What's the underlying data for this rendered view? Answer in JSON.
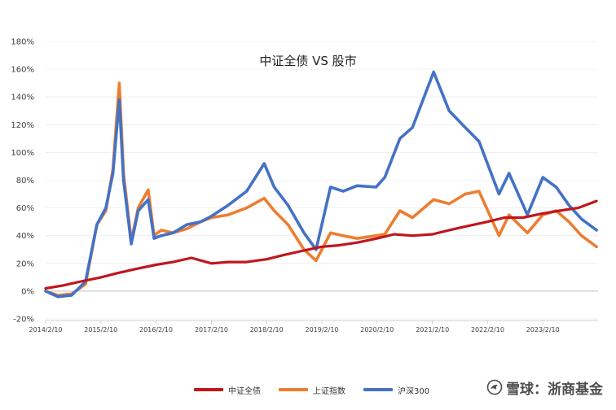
{
  "chart_data": {
    "type": "line",
    "title": "中证全债 VS 股市",
    "xlabel": "",
    "ylabel": "",
    "ylim": [
      -20,
      180
    ],
    "y_ticks": [
      "-20%",
      "0%",
      "20%",
      "40%",
      "60%",
      "80%",
      "100%",
      "120%",
      "140%",
      "160%",
      "180%"
    ],
    "y_tick_values": [
      -20,
      0,
      20,
      40,
      60,
      80,
      100,
      120,
      140,
      160,
      180
    ],
    "x_ticks": [
      "2014/2/10",
      "2015/2/10",
      "2016/2/10",
      "2017/2/10",
      "2018/2/10",
      "2019/2/10",
      "2020/2/10",
      "2021/2/10",
      "2022/2/10",
      "2023/2/10"
    ],
    "x_tick_values": [
      "2014-02-10",
      "2015-02-10",
      "2016-02-10",
      "2017-02-10",
      "2018-02-10",
      "2019-02-10",
      "2020-02-10",
      "2021-02-10",
      "2022-02-10",
      "2023-02-10"
    ],
    "xlim": [
      "2014-02-10",
      "2024-02-10"
    ],
    "grid": "horizontal",
    "legend_position": "bottom",
    "series": [
      {
        "name": "中证全债",
        "color": "#c0161d",
        "x": [
          "2014-02-10",
          "2014-06-01",
          "2014-10-01",
          "2015-02-10",
          "2015-06-01",
          "2015-10-01",
          "2016-02-10",
          "2016-06-01",
          "2016-10-01",
          "2017-02-10",
          "2017-06-01",
          "2017-10-01",
          "2018-02-10",
          "2018-06-01",
          "2018-10-01",
          "2019-02-10",
          "2019-06-01",
          "2019-10-01",
          "2020-02-10",
          "2020-06-01",
          "2020-10-01",
          "2021-02-10",
          "2021-06-01",
          "2021-10-01",
          "2022-02-10",
          "2022-06-01",
          "2022-10-01",
          "2023-02-10",
          "2023-06-01",
          "2023-10-01",
          "2024-01-31"
        ],
        "values": [
          2,
          4,
          7,
          10,
          13,
          16,
          19,
          21,
          24,
          20,
          21,
          21,
          23,
          26,
          29,
          32,
          33,
          35,
          38,
          41,
          40,
          41,
          44,
          47,
          50,
          53,
          53,
          56,
          58,
          60,
          65
        ]
      },
      {
        "name": "上证指数",
        "color": "#ed7d31",
        "x": [
          "2014-02-10",
          "2014-05-01",
          "2014-08-01",
          "2014-11-01",
          "2015-01-15",
          "2015-03-15",
          "2015-05-01",
          "2015-06-12",
          "2015-07-10",
          "2015-08-30",
          "2015-10-15",
          "2015-12-20",
          "2016-01-28",
          "2016-03-15",
          "2016-06-01",
          "2016-09-01",
          "2016-12-01",
          "2017-02-10",
          "2017-06-01",
          "2017-10-01",
          "2018-01-25",
          "2018-04-01",
          "2018-07-01",
          "2018-10-15",
          "2019-01-03",
          "2019-04-08",
          "2019-07-01",
          "2019-10-01",
          "2020-02-03",
          "2020-04-01",
          "2020-07-10",
          "2020-10-01",
          "2021-02-18",
          "2021-06-01",
          "2021-09-15",
          "2021-12-15",
          "2022-04-26",
          "2022-07-01",
          "2022-10-31",
          "2023-02-10",
          "2023-05-09",
          "2023-08-01",
          "2023-10-23",
          "2024-01-31"
        ],
        "values": [
          0,
          -3,
          -2,
          5,
          48,
          58,
          88,
          150,
          85,
          36,
          60,
          73,
          40,
          44,
          42,
          45,
          50,
          53,
          55,
          60,
          67,
          58,
          48,
          30,
          22,
          42,
          40,
          38,
          40,
          41,
          58,
          53,
          66,
          63,
          70,
          72,
          40,
          55,
          42,
          55,
          58,
          50,
          40,
          32
        ]
      },
      {
        "name": "沪深300",
        "color": "#4472c4",
        "x": [
          "2014-02-10",
          "2014-05-01",
          "2014-08-01",
          "2014-11-01",
          "2015-01-15",
          "2015-03-15",
          "2015-05-01",
          "2015-06-12",
          "2015-07-10",
          "2015-08-30",
          "2015-10-15",
          "2015-12-20",
          "2016-01-28",
          "2016-03-15",
          "2016-06-01",
          "2016-09-01",
          "2016-12-01",
          "2017-02-10",
          "2017-06-01",
          "2017-10-01",
          "2018-01-25",
          "2018-04-01",
          "2018-07-01",
          "2018-10-15",
          "2019-01-03",
          "2019-04-08",
          "2019-07-01",
          "2019-10-01",
          "2020-02-03",
          "2020-04-01",
          "2020-07-10",
          "2020-10-01",
          "2021-02-18",
          "2021-06-01",
          "2021-09-15",
          "2021-12-15",
          "2022-04-26",
          "2022-07-01",
          "2022-10-31",
          "2023-02-10",
          "2023-05-09",
          "2023-08-01",
          "2023-10-23",
          "2024-01-31"
        ],
        "values": [
          0,
          -4,
          -3,
          7,
          48,
          60,
          85,
          138,
          80,
          34,
          58,
          66,
          38,
          40,
          42,
          48,
          50,
          54,
          62,
          72,
          92,
          75,
          62,
          42,
          30,
          75,
          72,
          76,
          75,
          82,
          110,
          118,
          158,
          130,
          118,
          108,
          70,
          85,
          55,
          82,
          75,
          62,
          52,
          44
        ]
      }
    ]
  },
  "watermark": {
    "text": "雪球：浙商基金"
  }
}
